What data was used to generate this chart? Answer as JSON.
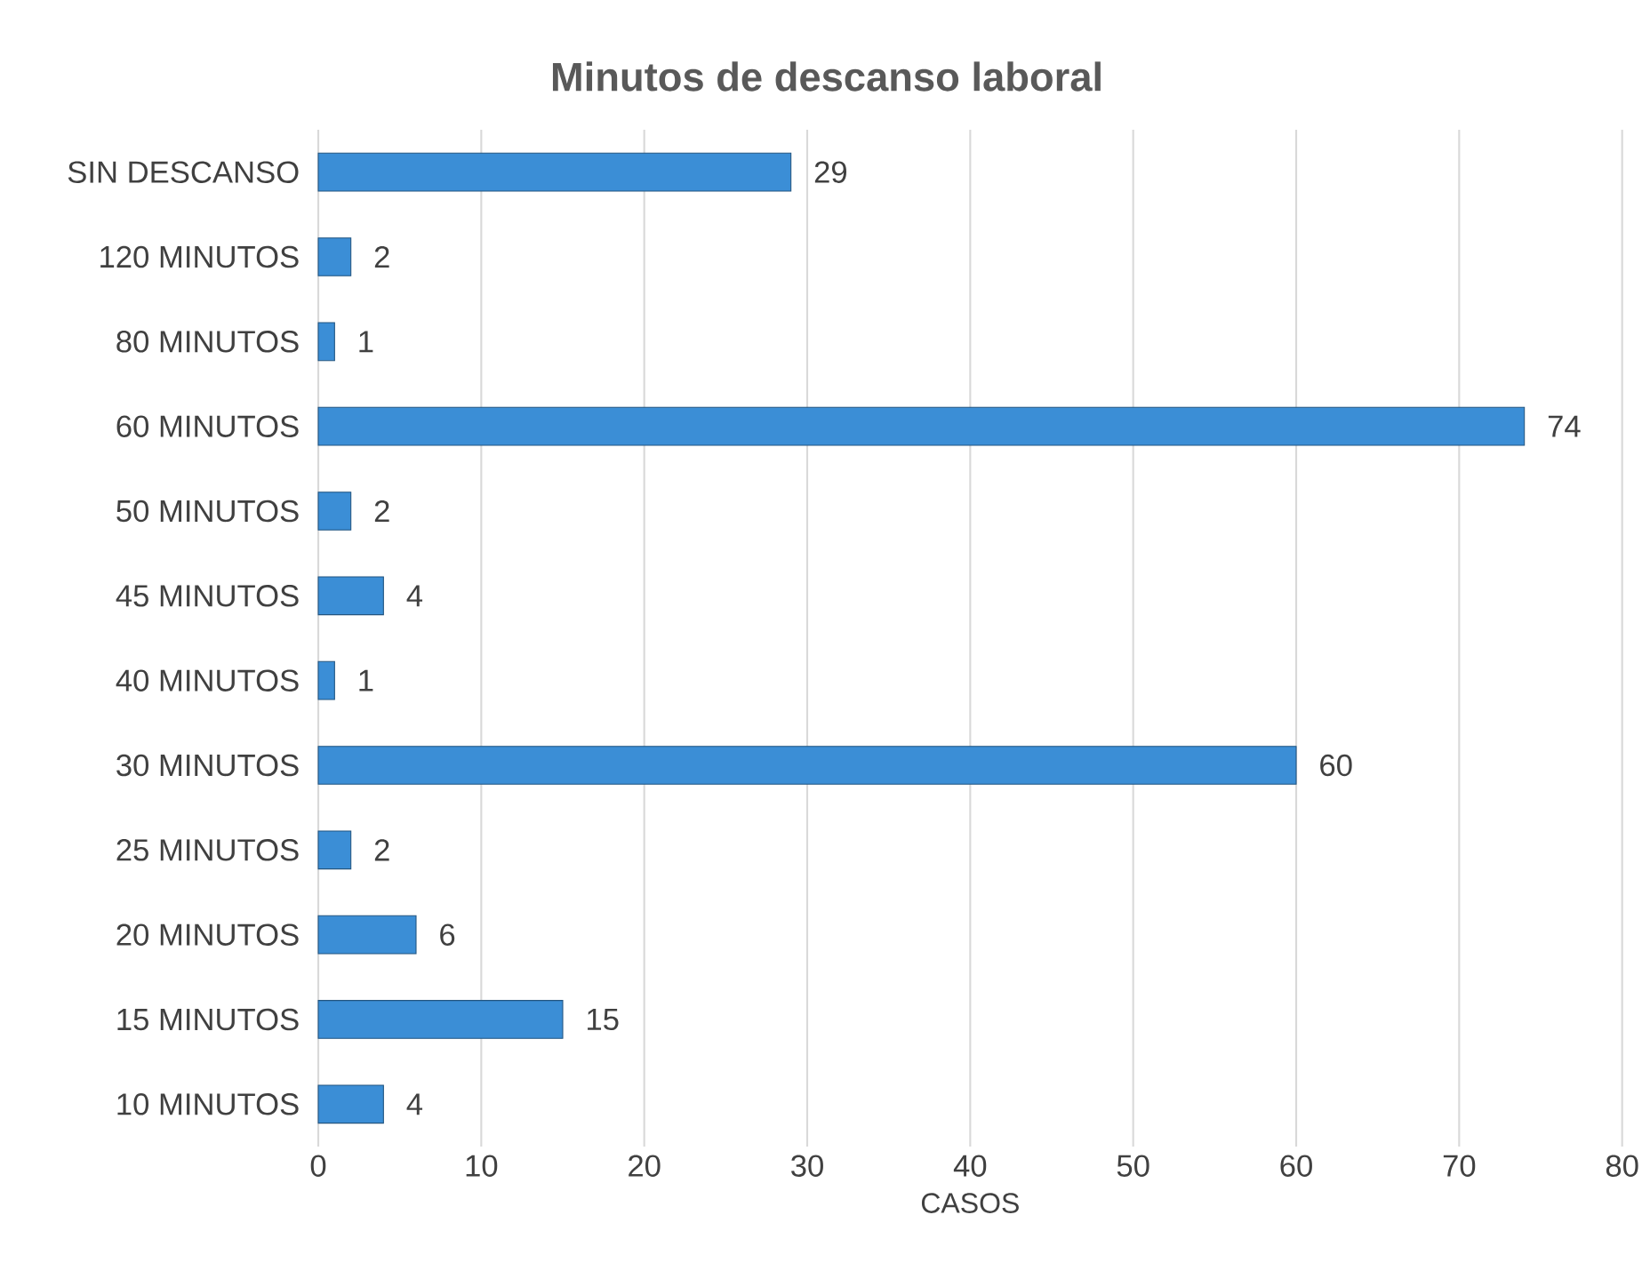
{
  "chart_data": {
    "type": "bar",
    "orientation": "horizontal",
    "title": "Minutos de descanso laboral",
    "xlabel": "CASOS",
    "categories": [
      "SIN DESCANSO",
      "120 MINUTOS",
      "80 MINUTOS",
      "60 MINUTOS",
      "50 MINUTOS",
      "45 MINUTOS",
      "40 MINUTOS",
      "30 MINUTOS",
      "25 MINUTOS",
      "20 MINUTOS",
      "15 MINUTOS",
      "10 MINUTOS"
    ],
    "values": [
      29,
      2,
      1,
      74,
      2,
      4,
      1,
      60,
      2,
      6,
      15,
      4
    ],
    "color": "#3b8ed6",
    "xlim": [
      0,
      80
    ],
    "xticks": [
      0,
      10,
      20,
      30,
      40,
      50,
      60,
      70,
      80
    ],
    "grid": "x",
    "data_labels": true
  }
}
